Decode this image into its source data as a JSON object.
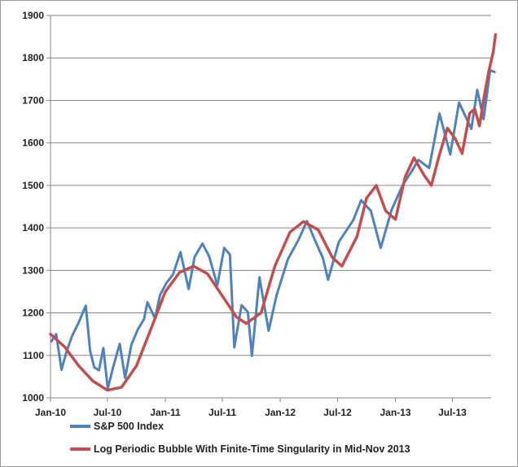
{
  "chart_data": {
    "type": "line",
    "title": "",
    "xlabel": "",
    "ylabel": "",
    "x_tick_labels": [
      "Jan-10",
      "Jul-10",
      "Jan-11",
      "Jul-11",
      "Jan-12",
      "Jul-12",
      "Jan-13",
      "Jul-13"
    ],
    "y_tick_labels": [
      "1000",
      "1100",
      "1200",
      "1300",
      "1400",
      "1500",
      "1600",
      "1700",
      "1800",
      "1900"
    ],
    "ylim": [
      1000,
      1900
    ],
    "xlim": [
      "2010-01",
      "2013-11"
    ],
    "grid": "horizontal",
    "legend_position": "bottom",
    "series": [
      {
        "name": "S&P 500 Index",
        "color": "#4f81bd",
        "points": [
          [
            "2010-01-04",
            1133
          ],
          [
            "2010-01-19",
            1150
          ],
          [
            "2010-02-05",
            1066
          ],
          [
            "2010-02-20",
            1106
          ],
          [
            "2010-03-10",
            1145
          ],
          [
            "2010-04-01",
            1178
          ],
          [
            "2010-04-23",
            1217
          ],
          [
            "2010-05-07",
            1110
          ],
          [
            "2010-05-20",
            1072
          ],
          [
            "2010-06-04",
            1065
          ],
          [
            "2010-06-18",
            1117
          ],
          [
            "2010-07-02",
            1022
          ],
          [
            "2010-07-20",
            1075
          ],
          [
            "2010-08-09",
            1127
          ],
          [
            "2010-08-26",
            1047
          ],
          [
            "2010-09-15",
            1125
          ],
          [
            "2010-10-05",
            1160
          ],
          [
            "2010-10-25",
            1185
          ],
          [
            "2010-11-05",
            1225
          ],
          [
            "2010-11-29",
            1187
          ],
          [
            "2010-12-15",
            1242
          ],
          [
            "2011-01-04",
            1270
          ],
          [
            "2011-01-25",
            1290
          ],
          [
            "2011-02-18",
            1343
          ],
          [
            "2011-03-16",
            1256
          ],
          [
            "2011-04-04",
            1332
          ],
          [
            "2011-04-29",
            1363
          ],
          [
            "2011-05-20",
            1333
          ],
          [
            "2011-06-15",
            1265
          ],
          [
            "2011-07-07",
            1353
          ],
          [
            "2011-07-25",
            1337
          ],
          [
            "2011-08-08",
            1119
          ],
          [
            "2011-08-31",
            1218
          ],
          [
            "2011-09-20",
            1202
          ],
          [
            "2011-10-03",
            1099
          ],
          [
            "2011-10-27",
            1284
          ],
          [
            "2011-11-25",
            1158
          ],
          [
            "2011-12-20",
            1241
          ],
          [
            "2012-01-25",
            1326
          ],
          [
            "2012-02-28",
            1372
          ],
          [
            "2012-03-26",
            1416
          ],
          [
            "2012-04-23",
            1366
          ],
          [
            "2012-05-15",
            1330
          ],
          [
            "2012-06-01",
            1278
          ],
          [
            "2012-07-05",
            1367
          ],
          [
            "2012-08-20",
            1418
          ],
          [
            "2012-09-14",
            1465
          ],
          [
            "2012-10-15",
            1440
          ],
          [
            "2012-11-15",
            1353
          ],
          [
            "2012-12-20",
            1443
          ],
          [
            "2013-01-25",
            1502
          ],
          [
            "2013-02-19",
            1530
          ],
          [
            "2013-03-15",
            1560
          ],
          [
            "2013-04-18",
            1541
          ],
          [
            "2013-05-21",
            1669
          ],
          [
            "2013-06-24",
            1573
          ],
          [
            "2013-07-22",
            1695
          ],
          [
            "2013-08-30",
            1633
          ],
          [
            "2013-09-18",
            1725
          ],
          [
            "2013-10-08",
            1656
          ],
          [
            "2013-10-29",
            1771
          ],
          [
            "2013-11-12",
            1767
          ]
        ]
      },
      {
        "name": "Log Periodic Bubble With Finite-Time Singularity in Mid-Nov 2013",
        "color": "#c0504d",
        "points": [
          [
            "2010-01-01",
            1150
          ],
          [
            "2010-02-15",
            1120
          ],
          [
            "2010-04-01",
            1075
          ],
          [
            "2010-05-15",
            1040
          ],
          [
            "2010-07-01",
            1018
          ],
          [
            "2010-08-15",
            1025
          ],
          [
            "2010-10-01",
            1075
          ],
          [
            "2010-11-15",
            1160
          ],
          [
            "2011-01-01",
            1250
          ],
          [
            "2011-02-15",
            1295
          ],
          [
            "2011-04-01",
            1310
          ],
          [
            "2011-05-15",
            1292
          ],
          [
            "2011-07-01",
            1240
          ],
          [
            "2011-08-15",
            1190
          ],
          [
            "2011-09-15",
            1175
          ],
          [
            "2011-11-01",
            1200
          ],
          [
            "2011-12-15",
            1310
          ],
          [
            "2012-02-01",
            1390
          ],
          [
            "2012-03-15",
            1415
          ],
          [
            "2012-05-01",
            1395
          ],
          [
            "2012-06-15",
            1330
          ],
          [
            "2012-07-15",
            1310
          ],
          [
            "2012-09-01",
            1380
          ],
          [
            "2012-10-01",
            1470
          ],
          [
            "2012-11-01",
            1500
          ],
          [
            "2012-12-01",
            1440
          ],
          [
            "2013-01-01",
            1420
          ],
          [
            "2013-02-01",
            1520
          ],
          [
            "2013-03-01",
            1565
          ],
          [
            "2013-04-01",
            1525
          ],
          [
            "2013-04-25",
            1500
          ],
          [
            "2013-05-20",
            1570
          ],
          [
            "2013-06-15",
            1635
          ],
          [
            "2013-07-10",
            1610
          ],
          [
            "2013-08-01",
            1575
          ],
          [
            "2013-08-25",
            1670
          ],
          [
            "2013-09-10",
            1680
          ],
          [
            "2013-09-25",
            1640
          ],
          [
            "2013-10-10",
            1710
          ],
          [
            "2013-10-25",
            1770
          ],
          [
            "2013-11-08",
            1815
          ],
          [
            "2013-11-15",
            1855
          ]
        ]
      }
    ]
  }
}
